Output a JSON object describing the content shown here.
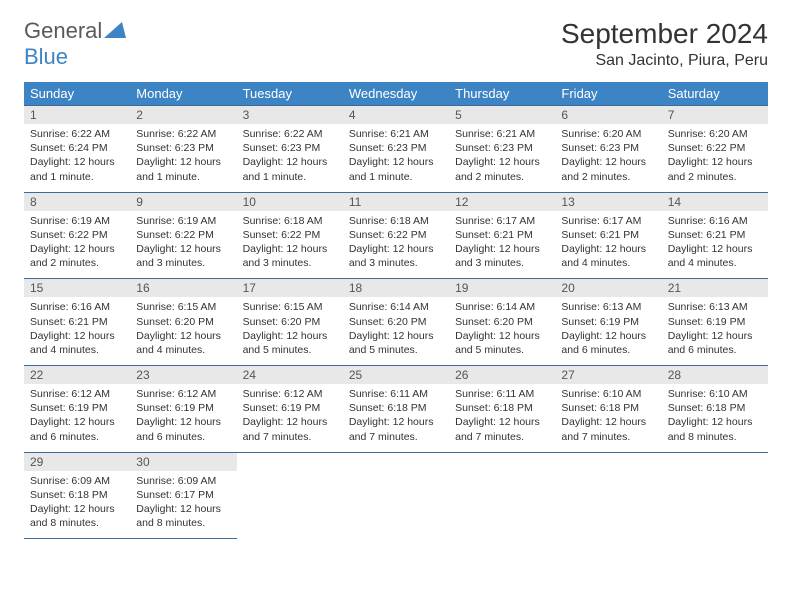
{
  "brand": {
    "text1": "General",
    "text2": "Blue",
    "accent": "#3d84c4",
    "gray": "#5a5a5a"
  },
  "title": "September 2024",
  "location": "San Jacinto, Piura, Peru",
  "colors": {
    "header_bg": "#3d84c4",
    "header_fg": "#ffffff",
    "daynum_bg": "#e8e8e8",
    "border": "#3d6a9a"
  },
  "dow": [
    "Sunday",
    "Monday",
    "Tuesday",
    "Wednesday",
    "Thursday",
    "Friday",
    "Saturday"
  ],
  "weeks": [
    [
      {
        "n": "1",
        "sr": "6:22 AM",
        "ss": "6:24 PM",
        "dl": "12 hours and 1 minute."
      },
      {
        "n": "2",
        "sr": "6:22 AM",
        "ss": "6:23 PM",
        "dl": "12 hours and 1 minute."
      },
      {
        "n": "3",
        "sr": "6:22 AM",
        "ss": "6:23 PM",
        "dl": "12 hours and 1 minute."
      },
      {
        "n": "4",
        "sr": "6:21 AM",
        "ss": "6:23 PM",
        "dl": "12 hours and 1 minute."
      },
      {
        "n": "5",
        "sr": "6:21 AM",
        "ss": "6:23 PM",
        "dl": "12 hours and 2 minutes."
      },
      {
        "n": "6",
        "sr": "6:20 AM",
        "ss": "6:23 PM",
        "dl": "12 hours and 2 minutes."
      },
      {
        "n": "7",
        "sr": "6:20 AM",
        "ss": "6:22 PM",
        "dl": "12 hours and 2 minutes."
      }
    ],
    [
      {
        "n": "8",
        "sr": "6:19 AM",
        "ss": "6:22 PM",
        "dl": "12 hours and 2 minutes."
      },
      {
        "n": "9",
        "sr": "6:19 AM",
        "ss": "6:22 PM",
        "dl": "12 hours and 3 minutes."
      },
      {
        "n": "10",
        "sr": "6:18 AM",
        "ss": "6:22 PM",
        "dl": "12 hours and 3 minutes."
      },
      {
        "n": "11",
        "sr": "6:18 AM",
        "ss": "6:22 PM",
        "dl": "12 hours and 3 minutes."
      },
      {
        "n": "12",
        "sr": "6:17 AM",
        "ss": "6:21 PM",
        "dl": "12 hours and 3 minutes."
      },
      {
        "n": "13",
        "sr": "6:17 AM",
        "ss": "6:21 PM",
        "dl": "12 hours and 4 minutes."
      },
      {
        "n": "14",
        "sr": "6:16 AM",
        "ss": "6:21 PM",
        "dl": "12 hours and 4 minutes."
      }
    ],
    [
      {
        "n": "15",
        "sr": "6:16 AM",
        "ss": "6:21 PM",
        "dl": "12 hours and 4 minutes."
      },
      {
        "n": "16",
        "sr": "6:15 AM",
        "ss": "6:20 PM",
        "dl": "12 hours and 4 minutes."
      },
      {
        "n": "17",
        "sr": "6:15 AM",
        "ss": "6:20 PM",
        "dl": "12 hours and 5 minutes."
      },
      {
        "n": "18",
        "sr": "6:14 AM",
        "ss": "6:20 PM",
        "dl": "12 hours and 5 minutes."
      },
      {
        "n": "19",
        "sr": "6:14 AM",
        "ss": "6:20 PM",
        "dl": "12 hours and 5 minutes."
      },
      {
        "n": "20",
        "sr": "6:13 AM",
        "ss": "6:19 PM",
        "dl": "12 hours and 6 minutes."
      },
      {
        "n": "21",
        "sr": "6:13 AM",
        "ss": "6:19 PM",
        "dl": "12 hours and 6 minutes."
      }
    ],
    [
      {
        "n": "22",
        "sr": "6:12 AM",
        "ss": "6:19 PM",
        "dl": "12 hours and 6 minutes."
      },
      {
        "n": "23",
        "sr": "6:12 AM",
        "ss": "6:19 PM",
        "dl": "12 hours and 6 minutes."
      },
      {
        "n": "24",
        "sr": "6:12 AM",
        "ss": "6:19 PM",
        "dl": "12 hours and 7 minutes."
      },
      {
        "n": "25",
        "sr": "6:11 AM",
        "ss": "6:18 PM",
        "dl": "12 hours and 7 minutes."
      },
      {
        "n": "26",
        "sr": "6:11 AM",
        "ss": "6:18 PM",
        "dl": "12 hours and 7 minutes."
      },
      {
        "n": "27",
        "sr": "6:10 AM",
        "ss": "6:18 PM",
        "dl": "12 hours and 7 minutes."
      },
      {
        "n": "28",
        "sr": "6:10 AM",
        "ss": "6:18 PM",
        "dl": "12 hours and 8 minutes."
      }
    ],
    [
      {
        "n": "29",
        "sr": "6:09 AM",
        "ss": "6:18 PM",
        "dl": "12 hours and 8 minutes."
      },
      {
        "n": "30",
        "sr": "6:09 AM",
        "ss": "6:17 PM",
        "dl": "12 hours and 8 minutes."
      },
      null,
      null,
      null,
      null,
      null
    ]
  ],
  "labels": {
    "sunrise": "Sunrise:",
    "sunset": "Sunset:",
    "daylight": "Daylight:"
  }
}
